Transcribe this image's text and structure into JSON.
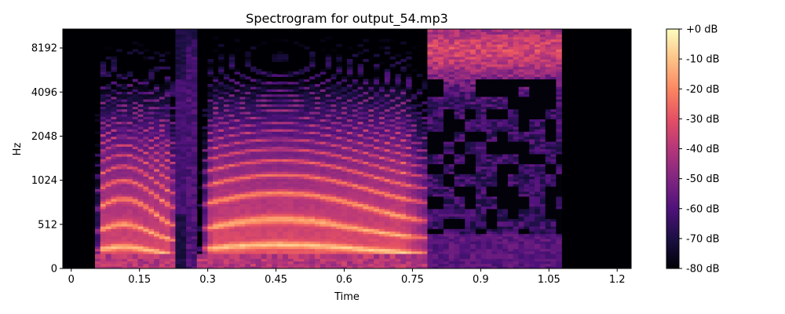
{
  "chart_data": {
    "type": "heatmap",
    "title": "Spectrogram for output_54.mp3",
    "xlabel": "Time",
    "ylabel": "Hz",
    "x_range": [
      -0.0186,
      1.2307
    ],
    "x_ticks": [
      0,
      0.15,
      0.3,
      0.45,
      0.6,
      0.75,
      0.9,
      1.05,
      1.2
    ],
    "x_tick_labels": [
      "0",
      "0.15",
      "0.3",
      "0.45",
      "0.6",
      "0.75",
      "0.9",
      "1.05",
      "1.2"
    ],
    "y_scale": "symlog",
    "y_ticks": [
      0,
      512,
      1024,
      2048,
      4096,
      8192
    ],
    "y_tick_labels": [
      "0",
      "512",
      "1024",
      "2048",
      "4096",
      "8192"
    ],
    "colorbar": {
      "colormap": "magma",
      "range_db": [
        -80,
        0
      ],
      "ticks": [
        0,
        -10,
        -20,
        -30,
        -40,
        -50,
        -60,
        -70,
        -80
      ],
      "tick_labels": [
        "+0 dB",
        "-10 dB",
        "-20 dB",
        "-30 dB",
        "-40 dB",
        "-50 dB",
        "-60 dB",
        "-70 dB",
        "-80 dB"
      ]
    },
    "segments": [
      {
        "kind": "silence",
        "t_start": -0.0186,
        "t_end": 0.05
      },
      {
        "kind": "voiced",
        "t_start": 0.05,
        "t_end": 0.23,
        "f0_hz": 210,
        "peak_db": -5
      },
      {
        "kind": "weak",
        "t_start": 0.23,
        "t_end": 0.25,
        "level_db": -68
      },
      {
        "kind": "closure",
        "t_start": 0.25,
        "t_end": 0.28,
        "level_db": -60
      },
      {
        "kind": "voiced",
        "t_start": 0.28,
        "t_end": 0.78,
        "f0_hz": 230,
        "peak_db": -3
      },
      {
        "kind": "fricative",
        "t_start": 0.78,
        "t_end": 1.08,
        "level_db": -55,
        "peak_band_hz": [
          6000,
          11000
        ]
      },
      {
        "kind": "silence",
        "t_start": 1.08,
        "t_end": 1.2307
      }
    ]
  }
}
